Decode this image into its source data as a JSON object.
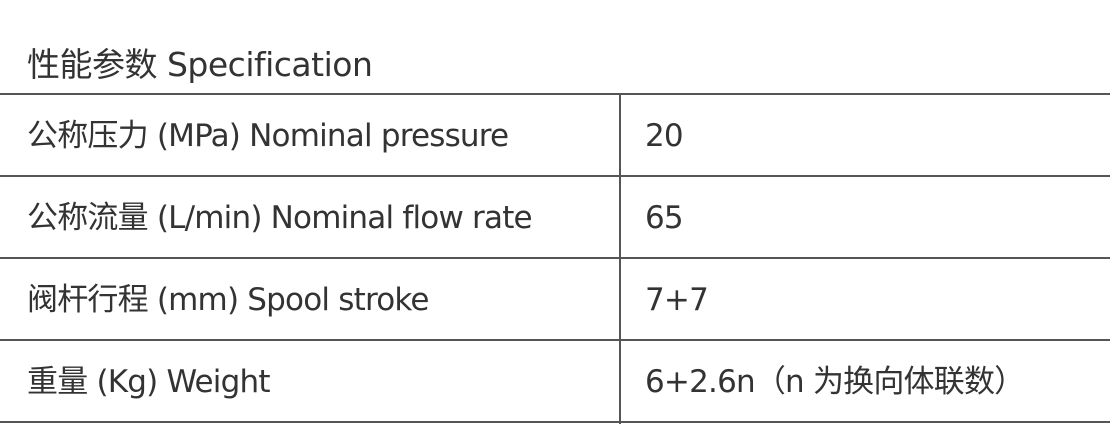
{
  "header": {
    "title": "性能参数  Specification"
  },
  "table": {
    "rows": [
      [
        "公称压力 (MPa) Nominal pressure",
        20
      ],
      [
        "公称流量 (L/min) Nominal flow rate",
        65
      ],
      [
        "阀杆行程 (mm) Spool stroke",
        "7+7"
      ],
      [
        "重量 (Kg) Weight",
        "6+2.6n（n 为换向体联数）"
      ]
    ]
  }
}
